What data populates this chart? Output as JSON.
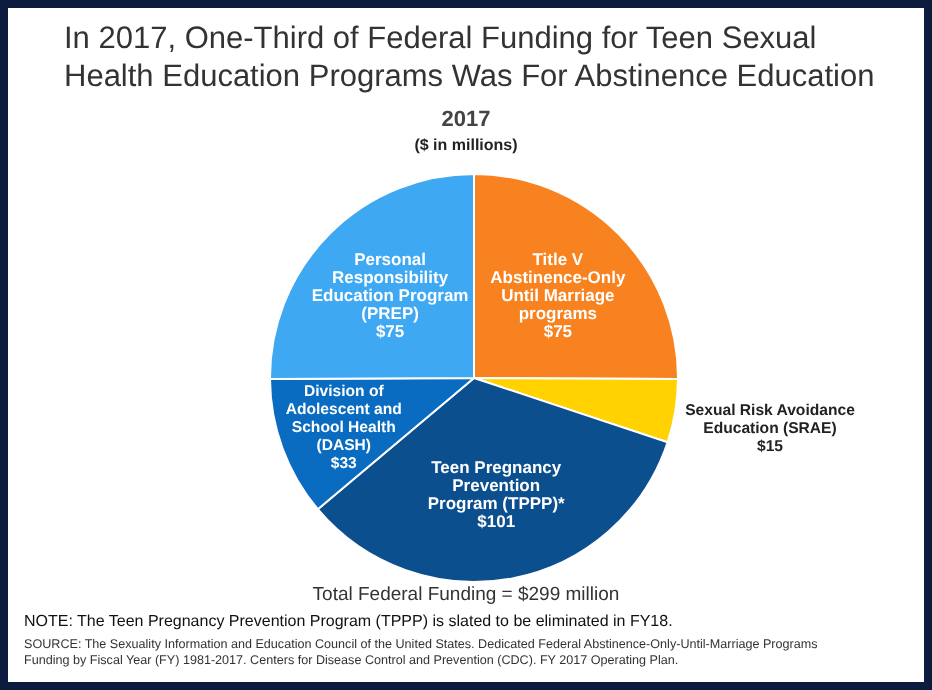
{
  "chart_data": {
    "type": "pie",
    "title": "In 2017, One-Third of Federal Funding for Teen Sexual Health Education Programs Was For Abstinence Education",
    "subtitle": "2017",
    "categories": [
      "Title V Abstinence-Only Until Marriage programs",
      "Sexual Risk Avoidance Education (SRAE)",
      "Teen Pregnancy Prevention Program (TPPP)*",
      "Division of Adolescent and School Health (DASH)",
      "Personal Responsibility Education Program (PREP)"
    ],
    "values": [
      75,
      15,
      101,
      33,
      75
    ],
    "value_labels": [
      "$75",
      "$15",
      "$101",
      "$33",
      "$75"
    ],
    "colors": [
      "#f7821f",
      "#ffd200",
      "#0c4f8f",
      "#0a6cc0",
      "#3ea8f2"
    ],
    "annotations": [
      "($ in millions)",
      "Total Federal Funding = $299 million",
      "NOTE: The Teen Pregnancy Prevention Program (TPPP) is slated to be eliminated in FY18.",
      "SOURCE: The Sexuality Information and Education Council of the United States. Dedicated Federal Abstinence-Only-Until-Marriage Programs Funding by Fiscal Year (FY) 1981-2017. Centers for Disease Control and Prevention (CDC). FY 2017 Operating Plan."
    ],
    "legend": false
  }
}
